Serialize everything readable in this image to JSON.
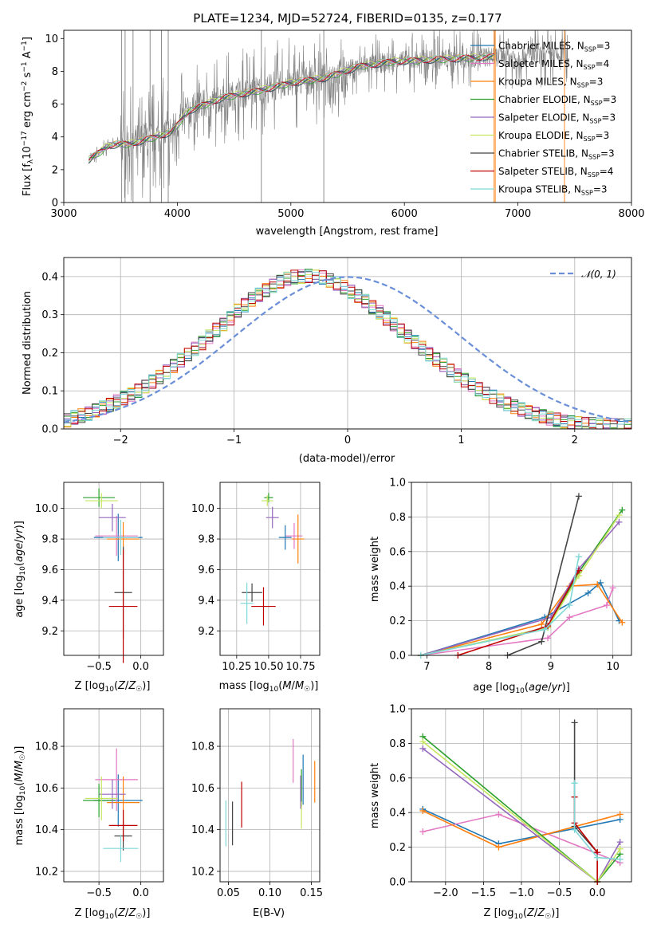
{
  "chart_data": [
    {
      "type": "line",
      "title": "PLATE=1234, MJD=52724, FIBERID=0135, z=0.177",
      "xlabel": "wavelength [Angstrom, rest frame]",
      "ylabel": "Flux [f_λ 10^-17 erg cm^-2 s^-1 A^-1]",
      "xlim": [
        3000,
        8000
      ],
      "ylim": [
        0,
        10.5
      ],
      "xticks": [
        "3000",
        "4000",
        "5000",
        "6000",
        "7000",
        "8000"
      ],
      "yticks": [
        "0",
        "2",
        "4",
        "6",
        "8",
        "10"
      ],
      "observed_color": "#808080",
      "model_spectrum_x": [
        3220,
        3400,
        3600,
        3800,
        3950,
        4100,
        4400,
        4700,
        5000,
        5300,
        5600,
        5900,
        6200,
        6500,
        6800
      ],
      "model_spectrum_y": [
        2.6,
        3.5,
        3.6,
        4.0,
        4.3,
        5.6,
        6.4,
        6.8,
        7.3,
        7.6,
        8.3,
        8.6,
        8.7,
        8.8,
        8.9
      ],
      "legend": [
        {
          "label": "Chabrier MILES, N",
          "sub": "SSP",
          "suffix": "=3",
          "color": "#1f77b4"
        },
        {
          "label": "Salpeter MILES, N",
          "sub": "SSP",
          "suffix": "=4",
          "color": "#e377c2"
        },
        {
          "label": "Kroupa MILES, N",
          "sub": "SSP",
          "suffix": "=3",
          "color": "#ff7f0e"
        },
        {
          "label": "Chabrier ELODIE, N",
          "sub": "SSP",
          "suffix": "=3",
          "color": "#2ca02c"
        },
        {
          "label": "Salpeter ELODIE, N",
          "sub": "SSP",
          "suffix": "=3",
          "color": "#9467bd"
        },
        {
          "label": "Kroupa ELODIE, N",
          "sub": "SSP",
          "suffix": "=3",
          "color": "#c7e55f"
        },
        {
          "label": "Chabrier STELIB, N",
          "sub": "SSP",
          "suffix": "=3",
          "color": "#444444"
        },
        {
          "label": "Salpeter STELIB, N",
          "sub": "SSP",
          "suffix": "=4",
          "color": "#c00000"
        },
        {
          "label": "Kroupa STELIB, N",
          "sub": "SSP",
          "suffix": "=3",
          "color": "#7fd7d7"
        }
      ]
    },
    {
      "type": "line",
      "xlabel": "(data-model)/error",
      "ylabel": "Normed distribution",
      "xlim": [
        -2.5,
        2.5
      ],
      "ylim": [
        0,
        0.45
      ],
      "xticks": [
        "−2",
        "−1",
        "0",
        "1",
        "2"
      ],
      "yticks": [
        "0.0",
        "0.1",
        "0.2",
        "0.3",
        "0.4"
      ],
      "legend": "𝒩(0, 1)",
      "normal_color": "#6a8fd8",
      "bin_width": 0.1,
      "histogram_x_start": -2.5,
      "histogram_values": [
        0.023,
        0.03,
        0.035,
        0.04,
        0.048,
        0.056,
        0.064,
        0.072,
        0.081,
        0.09,
        0.1,
        0.112,
        0.124,
        0.136,
        0.15,
        0.165,
        0.18,
        0.196,
        0.21,
        0.225,
        0.242,
        0.26,
        0.275,
        0.29,
        0.31,
        0.325,
        0.34,
        0.352,
        0.365,
        0.376,
        0.386,
        0.394,
        0.399,
        0.4,
        0.402,
        0.4,
        0.398,
        0.39,
        0.382,
        0.372,
        0.36,
        0.348,
        0.336,
        0.32,
        0.306,
        0.29,
        0.274,
        0.258,
        0.243,
        0.228,
        0.212,
        0.196,
        0.182,
        0.168,
        0.154,
        0.14,
        0.128,
        0.116,
        0.104,
        0.094,
        0.084,
        0.074,
        0.066,
        0.058,
        0.051,
        0.045,
        0.039,
        0.033,
        0.028,
        0.024,
        0.02,
        0.017,
        0.015,
        0.013,
        0.012,
        0.011,
        0.01,
        0.01,
        0.009,
        0.009
      ]
    },
    {
      "type": "scatter",
      "xlabel": "Z [log10(Z/Z☉)]",
      "ylabel": "age  [log10(age/yr)]",
      "xlim": [
        -0.92,
        0.27
      ],
      "ylim": [
        9.04,
        10.17
      ],
      "xticks": [
        "−0.5",
        "0.0"
      ],
      "yticks": [
        "9.2",
        "9.4",
        "9.6",
        "9.8",
        "10.0"
      ],
      "points": [
        {
          "x": -0.27,
          "y": 9.81,
          "xerr": 0.58,
          "yerr": 0.31,
          "color": "#1f77b4"
        },
        {
          "x": -0.29,
          "y": 9.82,
          "xerr": 0.51,
          "yerr": 0.26,
          "color": "#e377c2"
        },
        {
          "x": -0.21,
          "y": 9.8,
          "xerr": 0.39,
          "yerr": 0.22,
          "color": "#ff7f0e"
        },
        {
          "x": -0.5,
          "y": 10.07,
          "xerr": 0.38,
          "yerr": 0.12,
          "color": "#2ca02c"
        },
        {
          "x": -0.34,
          "y": 9.94,
          "xerr": 0.32,
          "yerr": 0.18,
          "color": "#9467bd"
        },
        {
          "x": -0.47,
          "y": 10.05,
          "xerr": 0.39,
          "yerr": 0.1,
          "color": "#c7e55f"
        },
        {
          "x": -0.21,
          "y": 9.45,
          "xerr": 0.21,
          "yerr": 0.6,
          "color": "#444444"
        },
        {
          "x": -0.21,
          "y": 9.36,
          "xerr": 0.34,
          "yerr": 0.74,
          "color": "#c00000"
        },
        {
          "x": -0.24,
          "y": 9.81,
          "xerr": 0.42,
          "yerr": 0.23,
          "color": "#7fd7d7"
        }
      ]
    },
    {
      "type": "scatter",
      "xlabel": "mass [log10(M/M☉)]",
      "ylabel": "",
      "xlim": [
        10.12,
        10.9
      ],
      "ylim": [
        9.04,
        10.17
      ],
      "xticks": [
        "10.25",
        "10.50",
        "10.75"
      ],
      "yticks": [
        "9.2",
        "9.4",
        "9.6",
        "9.8",
        "10.0"
      ],
      "points": [
        {
          "x": 10.63,
          "y": 9.81,
          "xerr": 0.1,
          "yerr": 0.16,
          "color": "#1f77b4"
        },
        {
          "x": 10.7,
          "y": 9.82,
          "xerr": 0.13,
          "yerr": 0.17,
          "color": "#e377c2"
        },
        {
          "x": 10.73,
          "y": 9.8,
          "xerr": 0.1,
          "yerr": 0.32,
          "color": "#ff7f0e"
        },
        {
          "x": 10.5,
          "y": 10.07,
          "xerr": 0.07,
          "yerr": 0.06,
          "color": "#2ca02c"
        },
        {
          "x": 10.53,
          "y": 9.94,
          "xerr": 0.1,
          "yerr": 0.14,
          "color": "#9467bd"
        },
        {
          "x": 10.49,
          "y": 10.05,
          "xerr": 0.09,
          "yerr": 0.07,
          "color": "#c7e55f"
        },
        {
          "x": 10.37,
          "y": 9.45,
          "xerr": 0.16,
          "yerr": 0.12,
          "color": "#444444"
        },
        {
          "x": 10.46,
          "y": 9.36,
          "xerr": 0.19,
          "yerr": 0.25,
          "color": "#c00000"
        },
        {
          "x": 10.33,
          "y": 9.38,
          "xerr": 0.1,
          "yerr": 0.27,
          "color": "#7fd7d7"
        }
      ]
    },
    {
      "type": "line",
      "xlabel": "age  [log10(age/yr)]",
      "ylabel": "mass weight",
      "xlim": [
        6.75,
        10.3
      ],
      "ylim": [
        0,
        1.0
      ],
      "xticks": [
        "7",
        "8",
        "9",
        "10"
      ],
      "yticks": [
        "0.0",
        "0.2",
        "0.4",
        "0.6",
        "0.8",
        "1.0"
      ],
      "series": [
        {
          "color": "#1f77b4",
          "x": [
            6.9,
            8.9,
            9.6,
            9.8,
            10.1
          ],
          "y": [
            0.0,
            0.22,
            0.36,
            0.42,
            0.2
          ]
        },
        {
          "color": "#e377c2",
          "x": [
            6.9,
            8.95,
            9.3,
            9.9,
            10.0
          ],
          "y": [
            0.0,
            0.1,
            0.22,
            0.29,
            0.39
          ]
        },
        {
          "color": "#ff7f0e",
          "x": [
            6.9,
            8.85,
            9.3,
            9.75,
            10.15
          ],
          "y": [
            0.0,
            0.18,
            0.4,
            0.41,
            0.19
          ]
        },
        {
          "color": "#2ca02c",
          "x": [
            6.9,
            8.95,
            9.45,
            10.15
          ],
          "y": [
            0.0,
            0.16,
            0.48,
            0.84
          ]
        },
        {
          "color": "#9467bd",
          "x": [
            6.9,
            9.0,
            9.45,
            10.1
          ],
          "y": [
            0.0,
            0.22,
            0.5,
            0.77
          ]
        },
        {
          "color": "#c7e55f",
          "x": [
            6.9,
            8.95,
            9.45,
            10.1
          ],
          "y": [
            0.0,
            0.16,
            0.46,
            0.81
          ]
        },
        {
          "color": "#444444",
          "x": [
            8.3,
            8.85,
            9.45
          ],
          "y": [
            0.0,
            0.08,
            0.92
          ]
        },
        {
          "color": "#c00000",
          "x": [
            7.5,
            8.95,
            9.45
          ],
          "y": [
            0.0,
            0.17,
            0.49
          ]
        },
        {
          "color": "#7fd7d7",
          "x": [
            6.9,
            8.9,
            9.3,
            9.45
          ],
          "y": [
            0.0,
            0.15,
            0.29,
            0.57
          ]
        }
      ]
    },
    {
      "type": "scatter",
      "xlabel": "Z [log10(Z/Z☉)]",
      "ylabel": "mass [log10(M/M☉)]",
      "xlim": [
        -0.92,
        0.27
      ],
      "ylim": [
        10.15,
        10.98
      ],
      "xticks": [
        "−0.5",
        "0.0"
      ],
      "yticks": [
        "10.2",
        "10.4",
        "10.6",
        "10.8"
      ],
      "points": [
        {
          "x": -0.27,
          "y": 10.54,
          "xerr": 0.58,
          "yerr": 0.25,
          "color": "#1f77b4"
        },
        {
          "x": -0.29,
          "y": 10.64,
          "xerr": 0.51,
          "yerr": 0.3,
          "color": "#e377c2"
        },
        {
          "x": -0.21,
          "y": 10.53,
          "xerr": 0.39,
          "yerr": 0.25,
          "color": "#ff7f0e"
        },
        {
          "x": -0.5,
          "y": 10.54,
          "xerr": 0.38,
          "yerr": 0.16,
          "color": "#2ca02c"
        },
        {
          "x": -0.34,
          "y": 10.57,
          "xerr": 0.32,
          "yerr": 0.14,
          "color": "#9467bd"
        },
        {
          "x": -0.47,
          "y": 10.55,
          "xerr": 0.39,
          "yerr": 0.21,
          "color": "#c7e55f"
        },
        {
          "x": -0.21,
          "y": 10.37,
          "xerr": 0.21,
          "yerr": 0.14,
          "color": "#444444"
        },
        {
          "x": -0.21,
          "y": 10.42,
          "xerr": 0.34,
          "yerr": 0.15,
          "color": "#c00000"
        },
        {
          "x": -0.24,
          "y": 10.31,
          "xerr": 0.42,
          "yerr": 0.13,
          "color": "#7fd7d7"
        }
      ]
    },
    {
      "type": "scatter",
      "xlabel": "E(B-V)",
      "ylabel": "",
      "xlim": [
        0.04,
        0.16
      ],
      "ylim": [
        10.15,
        10.98
      ],
      "xticks": [
        "0.05",
        "0.10",
        "0.15"
      ],
      "yticks": [
        "10.2",
        "10.4",
        "10.6",
        "10.8"
      ],
      "points": [
        {
          "x": 0.14,
          "y": 10.64,
          "yerr": 0.24,
          "color": "#1f77b4"
        },
        {
          "x": 0.128,
          "y": 10.73,
          "yerr": 0.21,
          "color": "#e377c2"
        },
        {
          "x": 0.154,
          "y": 10.63,
          "yerr": 0.2,
          "color": "#ff7f0e"
        },
        {
          "x": 0.138,
          "y": 10.6,
          "yerr": 0.18,
          "color": "#2ca02c"
        },
        {
          "x": 0.137,
          "y": 10.58,
          "yerr": 0.16,
          "color": "#9467bd"
        },
        {
          "x": 0.138,
          "y": 10.47,
          "yerr": 0.13,
          "color": "#c7e55f"
        },
        {
          "x": 0.055,
          "y": 10.43,
          "yerr": 0.21,
          "color": "#444444"
        },
        {
          "x": 0.066,
          "y": 10.52,
          "yerr": 0.22,
          "color": "#c00000"
        },
        {
          "x": 0.047,
          "y": 10.43,
          "yerr": 0.22,
          "color": "#7fd7d7"
        }
      ]
    },
    {
      "type": "line",
      "xlabel": "Z [log10(Z/Z☉)]",
      "ylabel": "mass weight",
      "xlim": [
        -2.45,
        0.45
      ],
      "ylim": [
        0,
        1.0
      ],
      "xticks": [
        "−2.0",
        "−1.5",
        "−1.0",
        "−0.5",
        "0.0"
      ],
      "yticks": [
        "0.0",
        "0.2",
        "0.4",
        "0.6",
        "0.8",
        "1.0"
      ],
      "series": [
        {
          "color": "#1f77b4",
          "x": [
            -2.3,
            -1.3,
            0.3
          ],
          "y": [
            0.42,
            0.22,
            0.36
          ]
        },
        {
          "color": "#e377c2",
          "x": [
            -2.3,
            -1.3,
            0.3
          ],
          "y": [
            0.29,
            0.39,
            0.11
          ]
        },
        {
          "color": "#ff7f0e",
          "x": [
            -2.3,
            -1.3,
            0.3
          ],
          "y": [
            0.41,
            0.2,
            0.39
          ]
        },
        {
          "color": "#2ca02c",
          "x": [
            -2.3,
            0.0,
            0.3
          ],
          "y": [
            0.84,
            0.0,
            0.16
          ]
        },
        {
          "color": "#9467bd",
          "x": [
            -2.3,
            0.0,
            0.3
          ],
          "y": [
            0.77,
            0.0,
            0.23
          ]
        },
        {
          "color": "#c7e55f",
          "x": [
            -2.3,
            0.0,
            0.3
          ],
          "y": [
            0.81,
            0.0,
            0.19
          ]
        },
        {
          "color": "#444444",
          "x": [
            -0.3,
            -0.3,
            0.0,
            0.0
          ],
          "y": [
            0.92,
            0.32,
            0.17,
            0.0
          ]
        },
        {
          "color": "#c00000",
          "x": [
            -0.3,
            -0.3,
            0.0,
            0.0
          ],
          "y": [
            0.49,
            0.34,
            0.17,
            0.0
          ]
        },
        {
          "color": "#7fd7d7",
          "x": [
            -0.3,
            -0.3,
            0.0,
            0.3
          ],
          "y": [
            0.57,
            0.3,
            0.14,
            0.13
          ]
        }
      ]
    }
  ]
}
